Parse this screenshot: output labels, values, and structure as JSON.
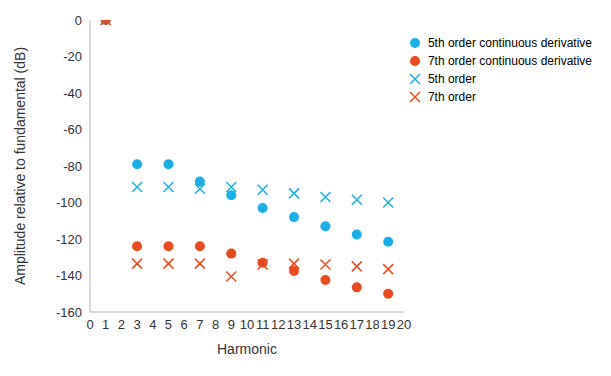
{
  "chart_data": {
    "type": "scatter",
    "x_label": "Harmonic",
    "y_label": "Amplitude relative to fundamental (dB)",
    "xlim": [
      0,
      20
    ],
    "xticks": [
      0,
      1,
      2,
      3,
      4,
      5,
      6,
      7,
      8,
      9,
      10,
      11,
      12,
      13,
      14,
      15,
      16,
      17,
      18,
      19,
      20
    ],
    "ylim": [
      -160,
      0
    ],
    "yticks": [
      -160,
      -140,
      -120,
      -100,
      -80,
      -60,
      -40,
      -20,
      0
    ],
    "grid": false,
    "legend": "top-right",
    "x": [
      1,
      3,
      5,
      7,
      9,
      11,
      13,
      15,
      17,
      19
    ],
    "series": [
      {
        "name": "5th order continuous derivative",
        "color": "#1ab0e6",
        "marker": "circle",
        "values": [
          0,
          -79,
          -79,
          -88.5,
          -96,
          -103,
          -108,
          -113,
          -117.5,
          -121.5
        ]
      },
      {
        "name": "7th order continuous derivative",
        "color": "#e84c1e",
        "marker": "circle",
        "values": [
          0,
          -124,
          -124,
          -124,
          -128,
          -133,
          -137.5,
          -142.5,
          -146.5,
          -150
        ]
      },
      {
        "name": "5th order",
        "color": "#1ab0e6",
        "marker": "x",
        "values": [
          0,
          -91.5,
          -91.5,
          -92.5,
          -91.5,
          -93,
          -95,
          -97,
          -98.5,
          -100
        ]
      },
      {
        "name": "7th order",
        "color": "#e84c1e",
        "marker": "x",
        "values": [
          0,
          -133.5,
          -133.5,
          -133.5,
          -140.5,
          -134,
          -133.5,
          -134,
          -135,
          -136.5
        ]
      }
    ]
  }
}
